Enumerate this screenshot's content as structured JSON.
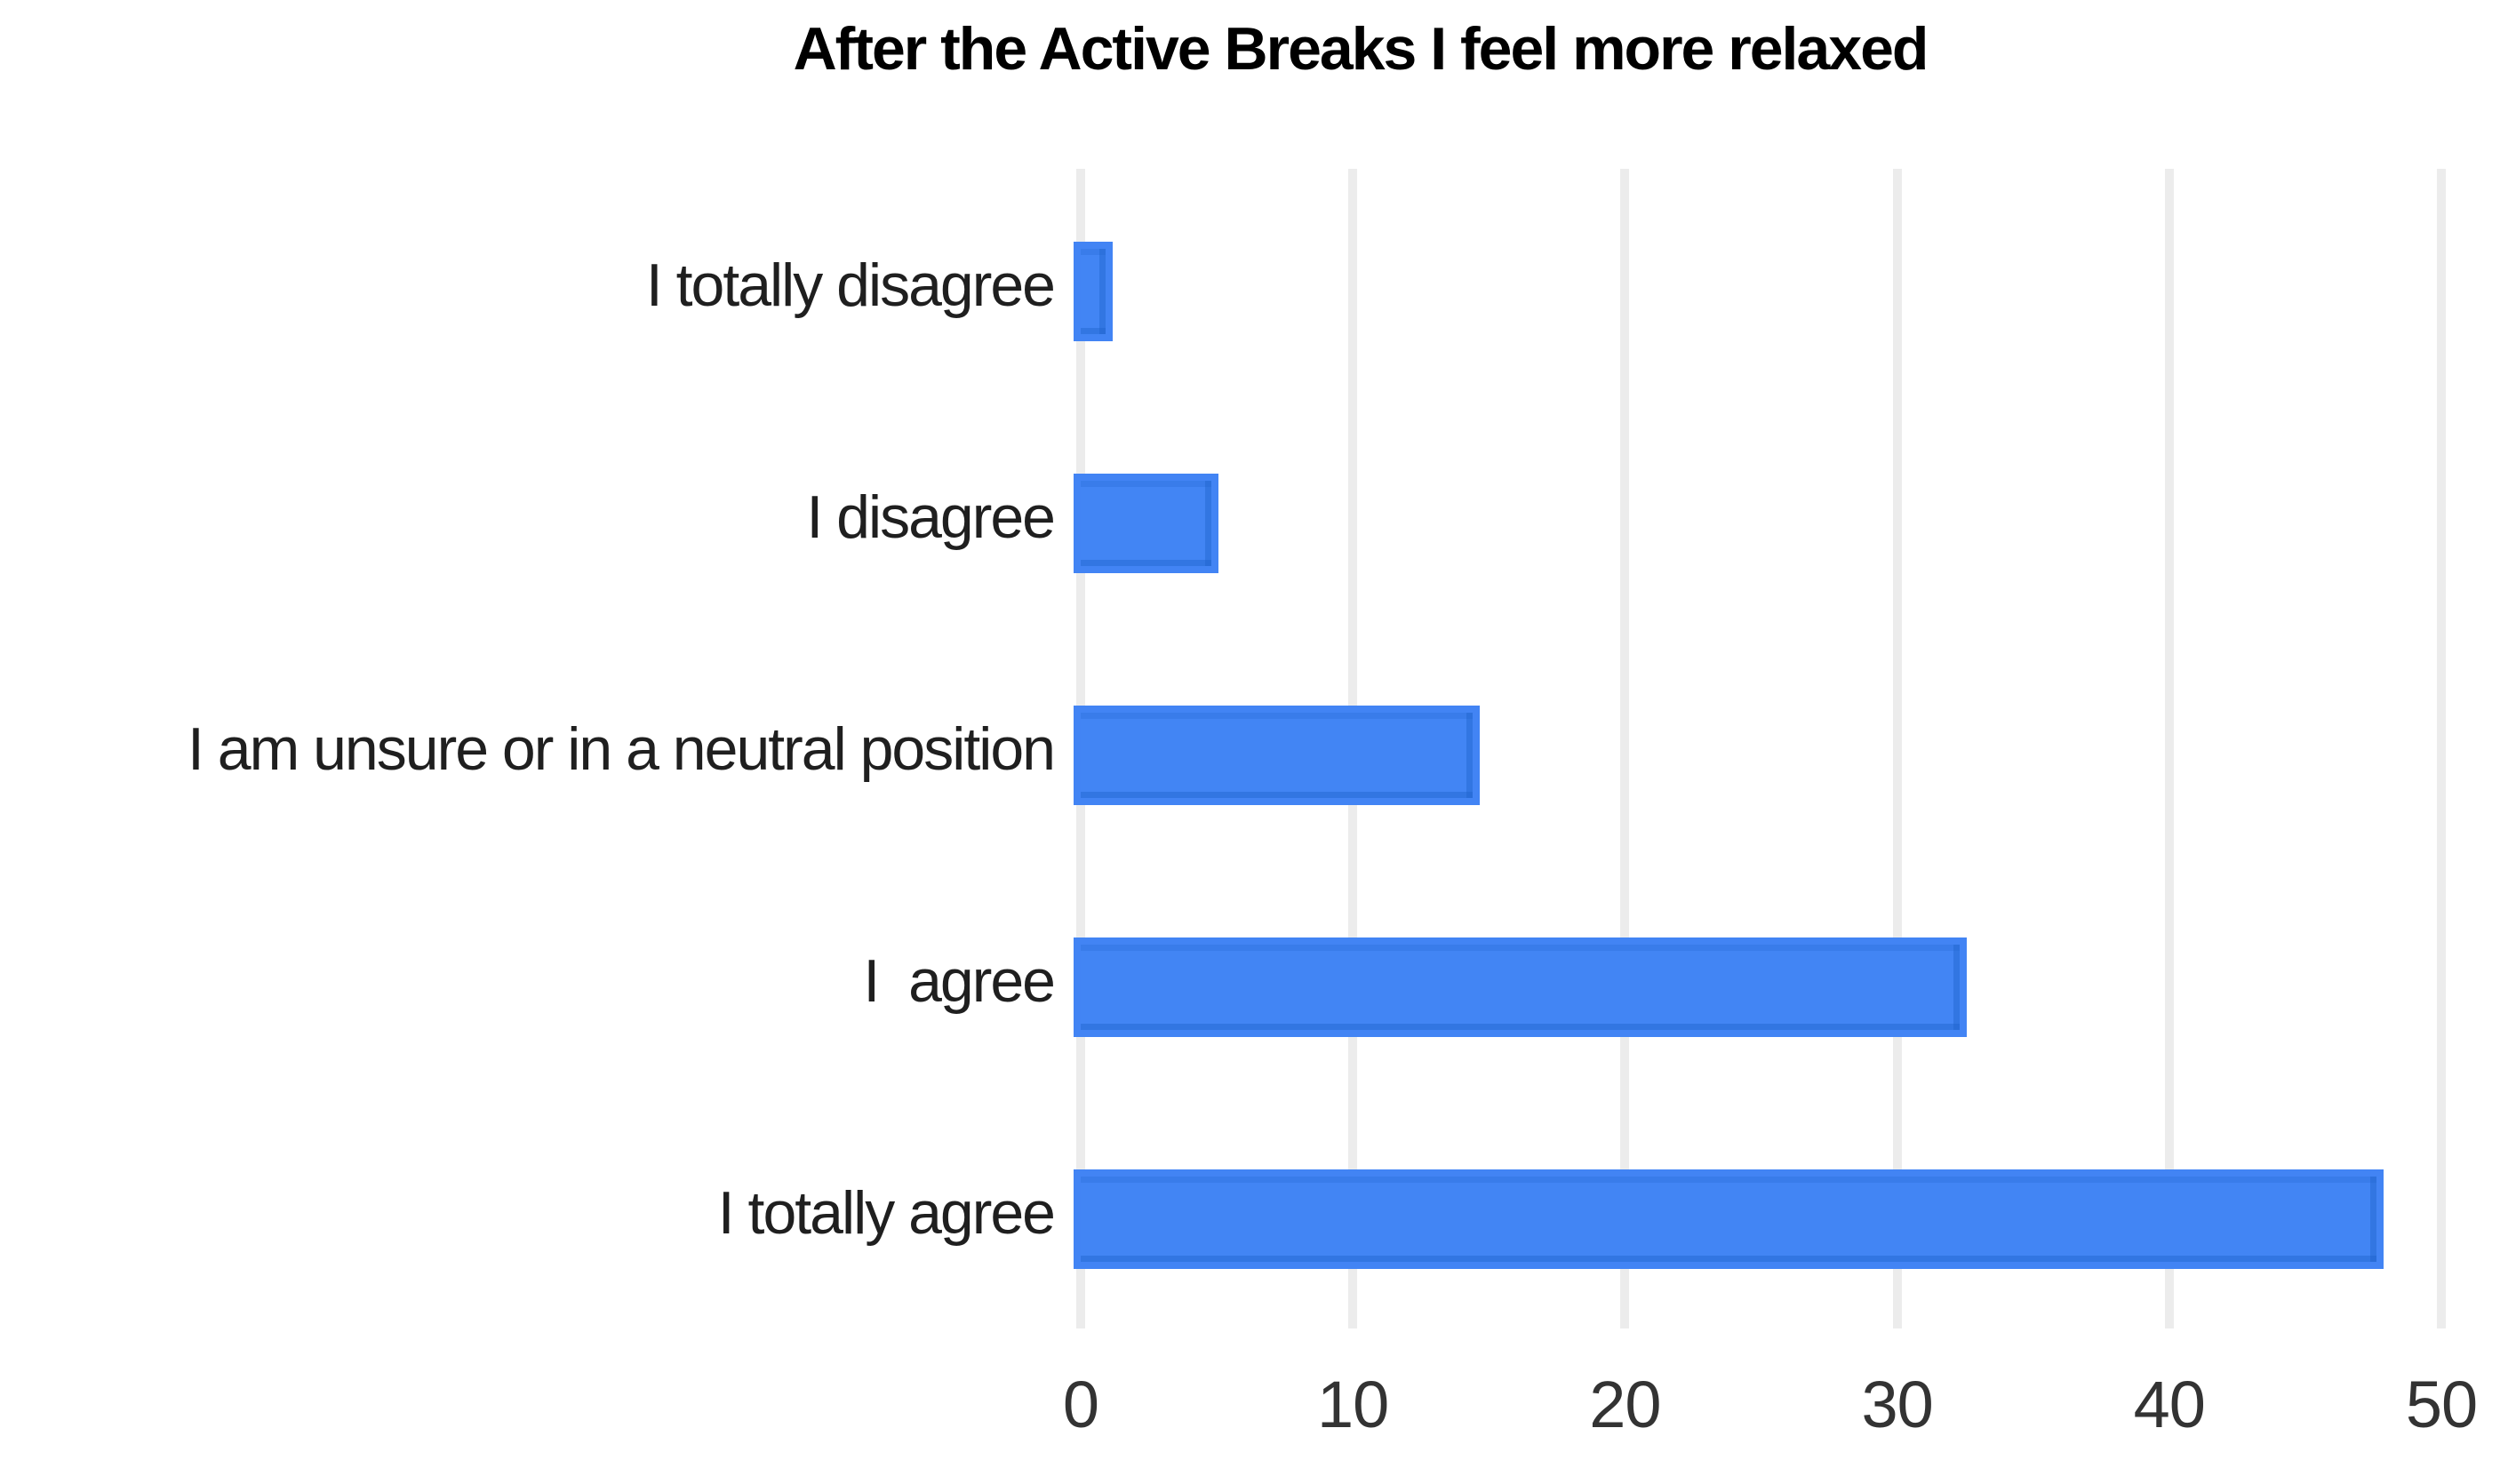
{
  "chart_data": {
    "type": "bar",
    "orientation": "horizontal",
    "title": "After the Active Breaks I feel more relaxed",
    "categories": [
      "I totally disagree",
      "I disagree",
      "I am unsure or in a neutral position",
      "I  agree",
      "I totally agree"
    ],
    "values": [
      0.9,
      4.8,
      14.4,
      32.3,
      47.6
    ],
    "xlabel": "",
    "ylabel": "",
    "xlim": [
      0,
      50
    ],
    "xticks": [
      0,
      10,
      20,
      30,
      40,
      50
    ],
    "grid": true,
    "legend_position": "none",
    "colors": {
      "bar_fill": "#4285f4",
      "bar_edge_light": "#b9cff9",
      "bar_edge_dark": "#1f63cd",
      "gridline": "#ececec",
      "title_text": "#000000",
      "category_text": "#1f1f1f",
      "tick_text": "#333333",
      "background": "#ffffff"
    }
  }
}
